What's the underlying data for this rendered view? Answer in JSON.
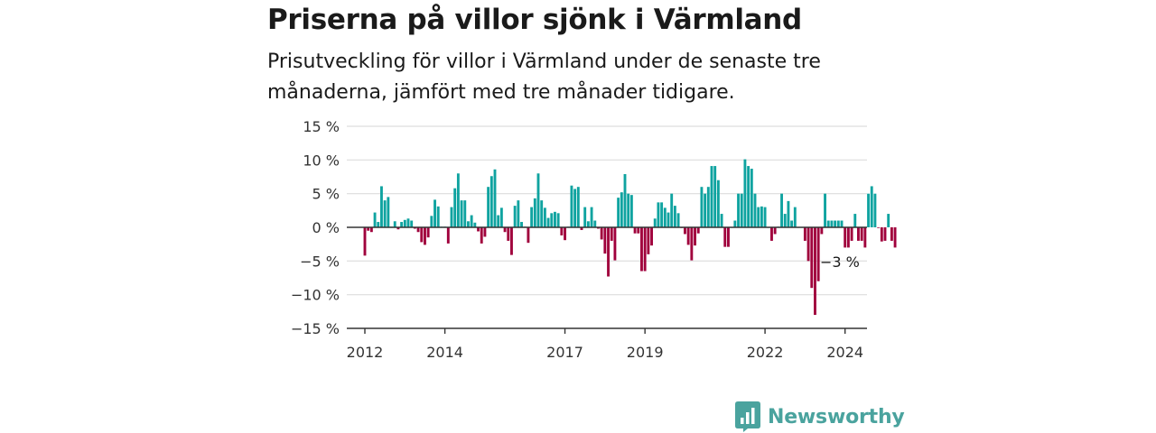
{
  "header": {
    "title": "Priserna på villor sjönk i Värmland",
    "subtitle": "Prisutveckling för villor i Värmland under de senaste tre månaderna, jämfört med tre månader tidigare."
  },
  "brand": {
    "name": "Newsworthy",
    "icon": "newsworthy-logo-icon"
  },
  "colors": {
    "positive": "#0fa3a0",
    "negative": "#a0003c",
    "grid": "#dddddd",
    "axis": "#333333",
    "brand": "#4aa39e"
  },
  "chart_data": {
    "type": "bar",
    "x_unit": "month",
    "x_start": "2012-01",
    "x_end": "2025-01",
    "ylim": [
      -15,
      15
    ],
    "yticks": [
      15,
      10,
      5,
      0,
      -5,
      -10,
      -15
    ],
    "ytick_labels": [
      "15 %",
      "10 %",
      "5 %",
      "0 %",
      "−5 %",
      "−10 %",
      "−15 %"
    ],
    "xticks": [
      "2012",
      "2014",
      "2017",
      "2019",
      "2022",
      "2024"
    ],
    "grid": true,
    "annotation": {
      "text": "−3 %",
      "x": "2025-01",
      "y": -3
    },
    "values": [
      -4.2,
      -0.5,
      -0.7,
      2.2,
      0.8,
      6.1,
      4.0,
      4.5,
      0.1,
      0.9,
      -0.3,
      0.8,
      1.1,
      1.3,
      1.0,
      -0.2,
      -0.7,
      -2.2,
      -2.6,
      -1.5,
      1.7,
      4.1,
      3.1,
      0.1,
      0.1,
      -2.4,
      3.0,
      5.8,
      8.0,
      4.0,
      4.0,
      0.9,
      1.8,
      0.7,
      -0.6,
      -2.4,
      -1.4,
      6.0,
      7.6,
      8.6,
      1.8,
      2.9,
      -0.7,
      -2.0,
      -4.1,
      3.2,
      4.0,
      0.8,
      0.1,
      -2.3,
      3.0,
      4.3,
      8.0,
      4.0,
      2.9,
      1.4,
      2.1,
      2.3,
      2.1,
      -1.2,
      -1.9,
      0.1,
      6.2,
      5.7,
      6.0,
      -0.4,
      3.0,
      0.9,
      3.0,
      1.0,
      -0.2,
      -1.8,
      -3.9,
      -7.3,
      -2.0,
      -4.9,
      4.4,
      5.2,
      7.9,
      5.0,
      4.8,
      -0.9,
      -0.9,
      -6.5,
      -6.5,
      -4.0,
      -2.7,
      1.3,
      3.7,
      3.7,
      2.9,
      2.2,
      5.0,
      3.2,
      2.1,
      -0.1,
      -1.0,
      -2.6,
      -4.9,
      -2.7,
      -0.9,
      6.0,
      5.0,
      6.0,
      9.1,
      9.1,
      7.0,
      2.0,
      -2.9,
      -2.9,
      0.0,
      1.0,
      5.0,
      5.0,
      10.1,
      9.1,
      8.7,
      5.0,
      3.0,
      3.1,
      3.0,
      0.0,
      -2.0,
      -1.0,
      0.1,
      5.0,
      2.0,
      3.9,
      1.0,
      3.0,
      0.0,
      0.0,
      -2.0,
      -5.0,
      -9.0,
      -13.0,
      -8.0,
      -1.0,
      5.0,
      1.0,
      1.0,
      1.0,
      1.0,
      1.0,
      -3.0,
      -3.0,
      -2.0,
      2.0,
      -2.0,
      -2.0,
      -3.0,
      5.0,
      6.1,
      5.0,
      -0.1,
      -2.1,
      -2.0,
      2.0,
      -2.0,
      -3.0
    ]
  }
}
